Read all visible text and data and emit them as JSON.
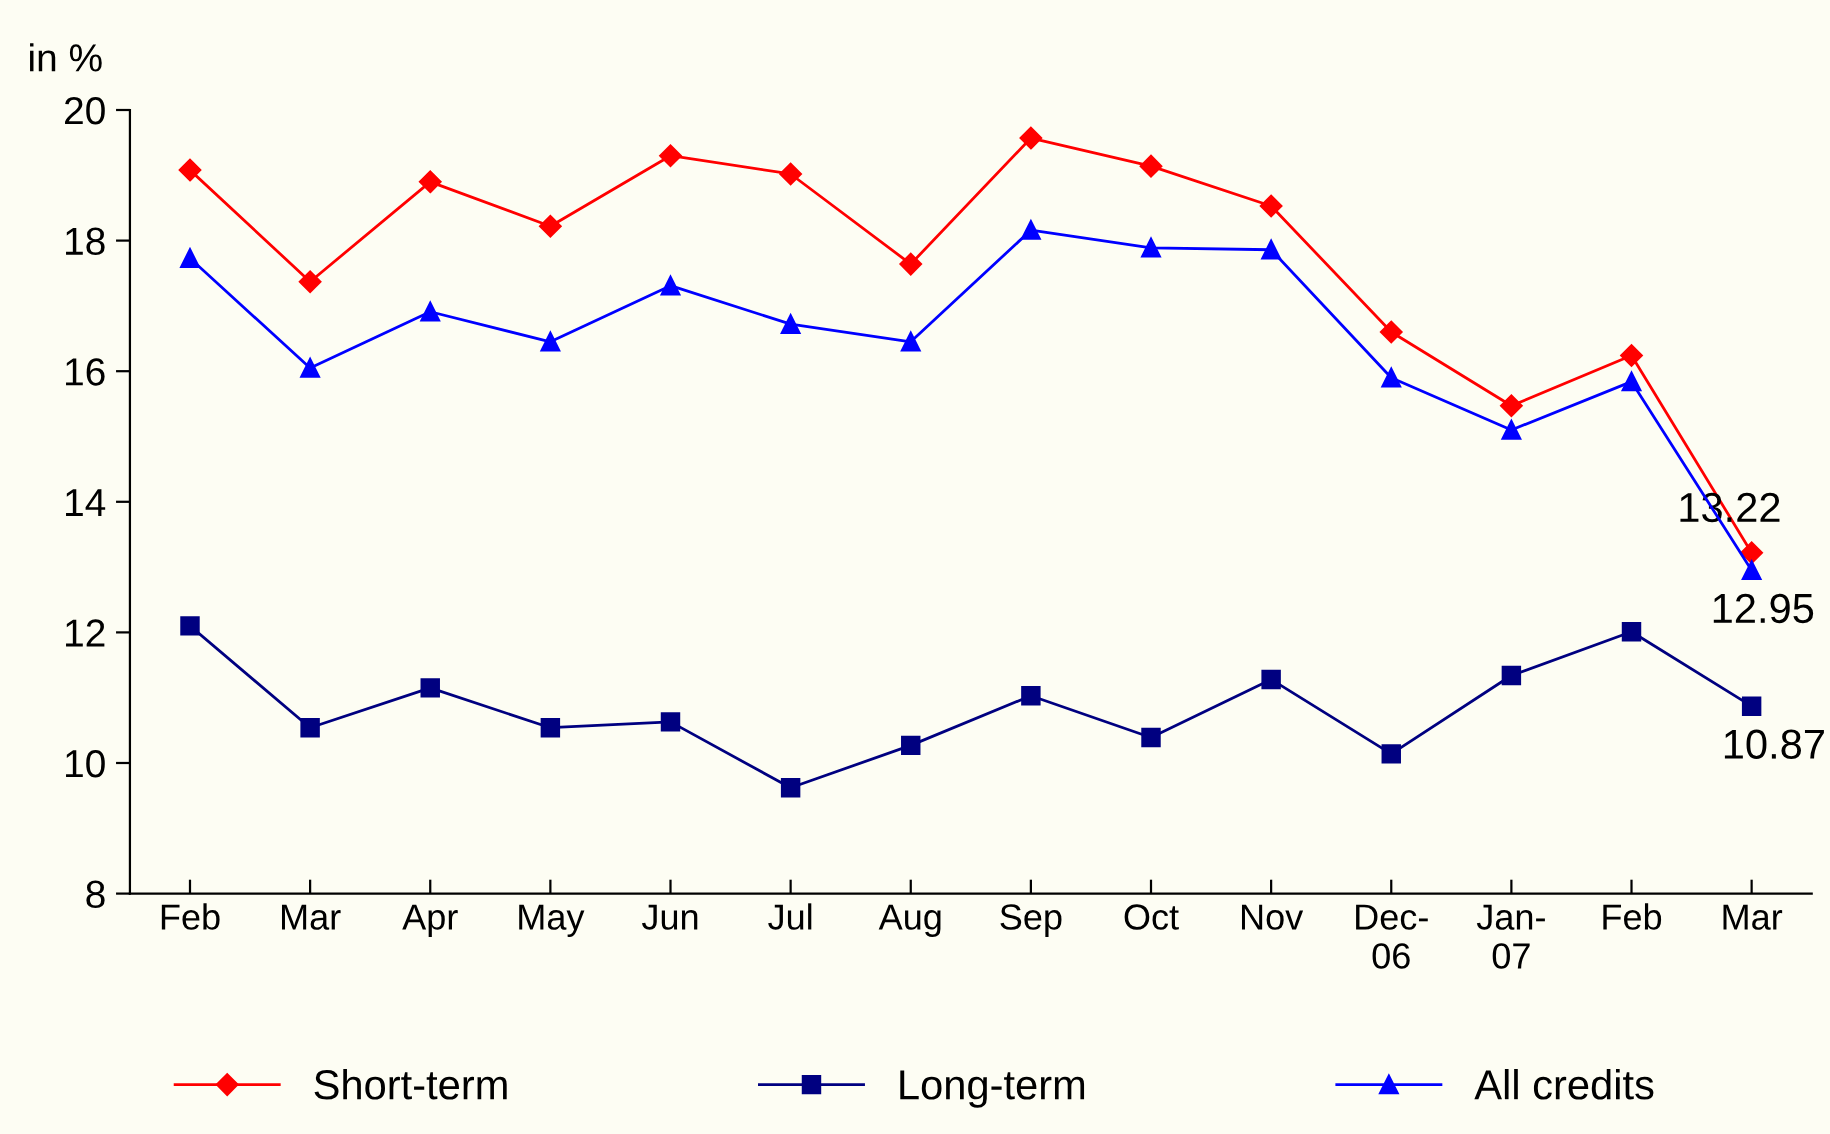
{
  "chart_data": {
    "type": "line",
    "ylabel": "in %",
    "categories": [
      "Feb",
      "Mar",
      "Apr",
      "May",
      "Jun",
      "Jul",
      "Aug",
      "Sep",
      "Oct",
      "Nov",
      "Dec-\n06",
      "Jan-\n07",
      "Feb",
      "Mar"
    ],
    "series": [
      {
        "name": "Short-term",
        "color": "#ff0000",
        "marker": "diamond",
        "values": [
          19.08,
          17.37,
          18.9,
          18.22,
          19.3,
          19.02,
          17.64,
          19.57,
          19.14,
          18.53,
          16.6,
          15.47,
          16.24,
          13.22
        ],
        "value_labels": [
          null,
          null,
          null,
          null,
          null,
          null,
          null,
          null,
          null,
          null,
          null,
          null,
          null,
          "13.22"
        ]
      },
      {
        "name": "Long-term",
        "color": "#000080",
        "marker": "square",
        "values": [
          12.1,
          10.54,
          11.15,
          10.54,
          10.63,
          9.62,
          10.27,
          11.03,
          10.39,
          11.28,
          10.14,
          11.34,
          12.01,
          10.87
        ],
        "value_labels": [
          null,
          null,
          null,
          null,
          null,
          null,
          null,
          null,
          null,
          null,
          null,
          null,
          null,
          "10.87"
        ]
      },
      {
        "name": "All credits",
        "color": "#0000ff",
        "marker": "triangle",
        "values": [
          17.73,
          16.05,
          16.91,
          16.45,
          17.31,
          16.72,
          16.45,
          18.16,
          17.89,
          17.86,
          15.9,
          15.1,
          15.84,
          12.95
        ],
        "value_labels": [
          null,
          null,
          null,
          null,
          null,
          null,
          null,
          null,
          null,
          null,
          null,
          null,
          null,
          "12.95"
        ]
      }
    ],
    "ylim": [
      8,
      20
    ],
    "yticks": [
      8,
      10,
      12,
      14,
      16,
      18,
      20
    ],
    "grid": false,
    "legend": "bottom",
    "line_style": "solid"
  }
}
